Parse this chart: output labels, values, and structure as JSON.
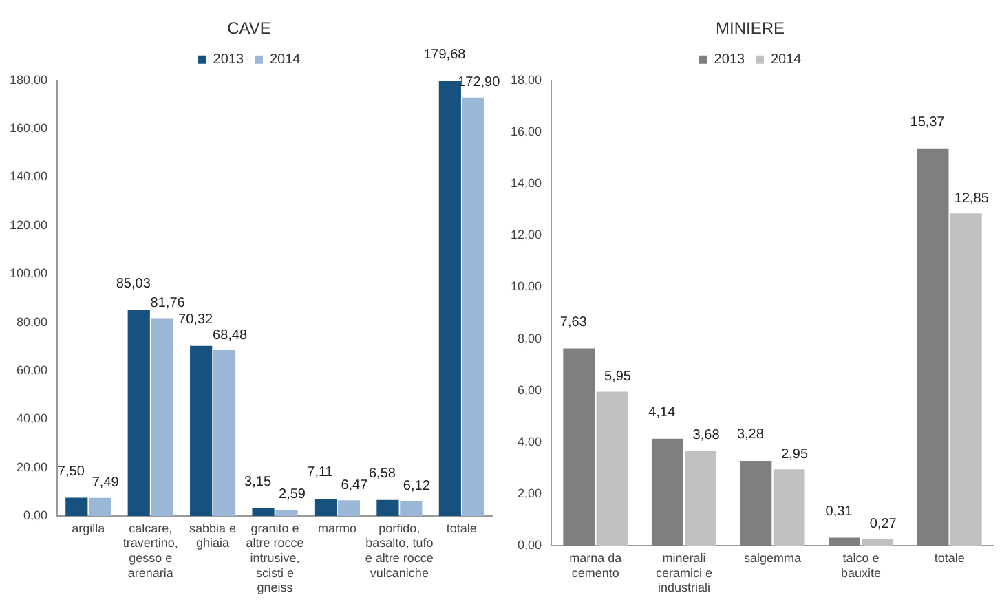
{
  "chart_data": [
    {
      "type": "bar",
      "title": "CAVE",
      "categories": [
        "argilla",
        "calcare, travertino, gesso e arenaria",
        "sabbia e ghiaia",
        "granito e altre rocce intrusive, scisti e gneiss",
        "marmo",
        "porfido, basalto, tufo e altre rocce vulcaniche",
        "totale"
      ],
      "series": [
        {
          "name": "2013",
          "color": "#17527f",
          "values": [
            7.5,
            85.03,
            70.32,
            3.15,
            7.11,
            6.58,
            179.68
          ],
          "value_labels": [
            "7,50",
            "85,03",
            "70,32",
            "3,15",
            "7,11",
            "6,58",
            "179,68"
          ]
        },
        {
          "name": "2014",
          "color": "#9bb7d8",
          "values": [
            7.49,
            81.76,
            68.48,
            2.59,
            6.47,
            6.12,
            172.9
          ],
          "value_labels": [
            "7,49",
            "81,76",
            "68,48",
            "2,59",
            "6,47",
            "6,12",
            "172,90"
          ]
        }
      ],
      "ylim": [
        0,
        180
      ],
      "yticks": [
        {
          "value": 0,
          "label": "0,00"
        },
        {
          "value": 20,
          "label": "20,00"
        },
        {
          "value": 40,
          "label": "40,00"
        },
        {
          "value": 60,
          "label": "60,00"
        },
        {
          "value": 80,
          "label": "80,00"
        },
        {
          "value": 100,
          "label": "100,00"
        },
        {
          "value": 120,
          "label": "120,00"
        },
        {
          "value": 140,
          "label": "140,00"
        },
        {
          "value": 160,
          "label": "160,00"
        },
        {
          "value": 180,
          "label": "180,00"
        }
      ],
      "grid": false,
      "legend": "top"
    },
    {
      "type": "bar",
      "title": "MINIERE",
      "categories": [
        "marna da cemento",
        "minerali ceramici e industriali",
        "salgemma",
        "talco e bauxite",
        "totale"
      ],
      "series": [
        {
          "name": "2013",
          "color": "#7f7f7f",
          "values": [
            7.63,
            4.14,
            3.28,
            0.31,
            15.37
          ],
          "value_labels": [
            "7,63",
            "4,14",
            "3,28",
            "0,31",
            "15,37"
          ]
        },
        {
          "name": "2014",
          "color": "#c0c0c0",
          "values": [
            5.95,
            3.68,
            2.95,
            0.27,
            12.85
          ],
          "value_labels": [
            "5,95",
            "3,68",
            "2,95",
            "0,27",
            "12,85"
          ]
        }
      ],
      "ylim": [
        0,
        18
      ],
      "yticks": [
        {
          "value": 0,
          "label": "0,00"
        },
        {
          "value": 2,
          "label": "2,00"
        },
        {
          "value": 4,
          "label": "4,00"
        },
        {
          "value": 6,
          "label": "6,00"
        },
        {
          "value": 8,
          "label": "8,00"
        },
        {
          "value": 10,
          "label": "10,00"
        },
        {
          "value": 12,
          "label": "12,00"
        },
        {
          "value": 14,
          "label": "14,00"
        },
        {
          "value": 16,
          "label": "16,00"
        },
        {
          "value": 18,
          "label": "18,00"
        }
      ],
      "grid": false,
      "legend": "top"
    }
  ]
}
